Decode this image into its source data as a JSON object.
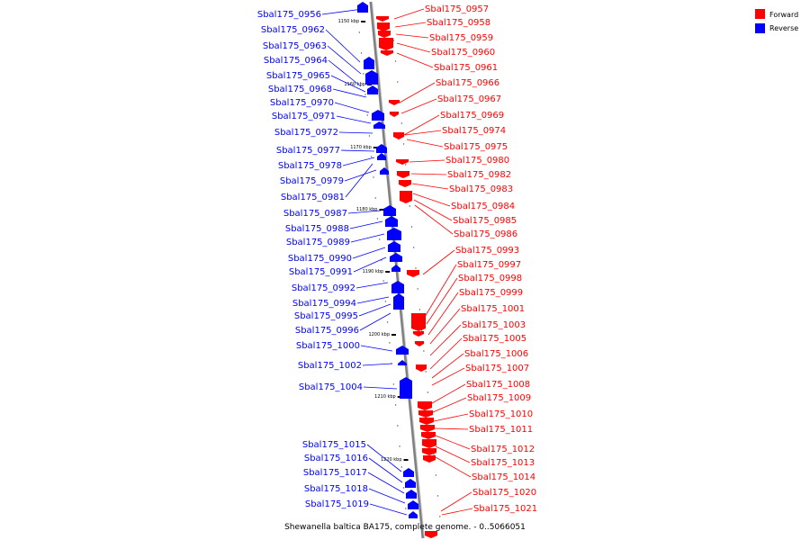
{
  "caption": "Shewanella baltica BA175, complete genome. - 0..5066051",
  "legend": [
    {
      "label": "Forward",
      "color": "#ff0000"
    },
    {
      "label": "Reverse",
      "color": "#0000ff"
    }
  ],
  "colors": {
    "forward": "#ff0000",
    "reverse": "#0000ff",
    "backbone": "#808080"
  },
  "scale_ticks": [
    "1150 kbp",
    "1160 kbp",
    "1170 kbp",
    "1180 kbp",
    "1190 kbp",
    "1200 kbp",
    "1210 kbp",
    "1220 kbp"
  ],
  "reverse_genes": [
    "Sbal175_0956",
    "Sbal175_0962",
    "Sbal175_0963",
    "Sbal175_0964",
    "Sbal175_0965",
    "Sbal175_0968",
    "Sbal175_0970",
    "Sbal175_0971",
    "Sbal175_0972",
    "Sbal175_0977",
    "Sbal175_0978",
    "Sbal175_0979",
    "Sbal175_0981",
    "Sbal175_0987",
    "Sbal175_0988",
    "Sbal175_0989",
    "Sbal175_0990",
    "Sbal175_0991",
    "Sbal175_0992",
    "Sbal175_0994",
    "Sbal175_0995",
    "Sbal175_0996",
    "Sbal175_1000",
    "Sbal175_1002",
    "Sbal175_1004",
    "Sbal175_1015",
    "Sbal175_1016",
    "Sbal175_1017",
    "Sbal175_1018",
    "Sbal175_1019"
  ],
  "forward_genes": [
    "Sbal175_0957",
    "Sbal175_0958",
    "Sbal175_0959",
    "Sbal175_0960",
    "Sbal175_0961",
    "Sbal175_0966",
    "Sbal175_0967",
    "Sbal175_0969",
    "Sbal175_0974",
    "Sbal175_0975",
    "Sbal175_0980",
    "Sbal175_0982",
    "Sbal175_0983",
    "Sbal175_0984",
    "Sbal175_0985",
    "Sbal175_0986",
    "Sbal175_0993",
    "Sbal175_0997",
    "Sbal175_0998",
    "Sbal175_0999",
    "Sbal175_1001",
    "Sbal175_1003",
    "Sbal175_1005",
    "Sbal175_1006",
    "Sbal175_1007",
    "Sbal175_1008",
    "Sbal175_1009",
    "Sbal175_1010",
    "Sbal175_1011",
    "Sbal175_1012",
    "Sbal175_1013",
    "Sbal175_1014",
    "Sbal175_1020",
    "Sbal175_1021"
  ]
}
